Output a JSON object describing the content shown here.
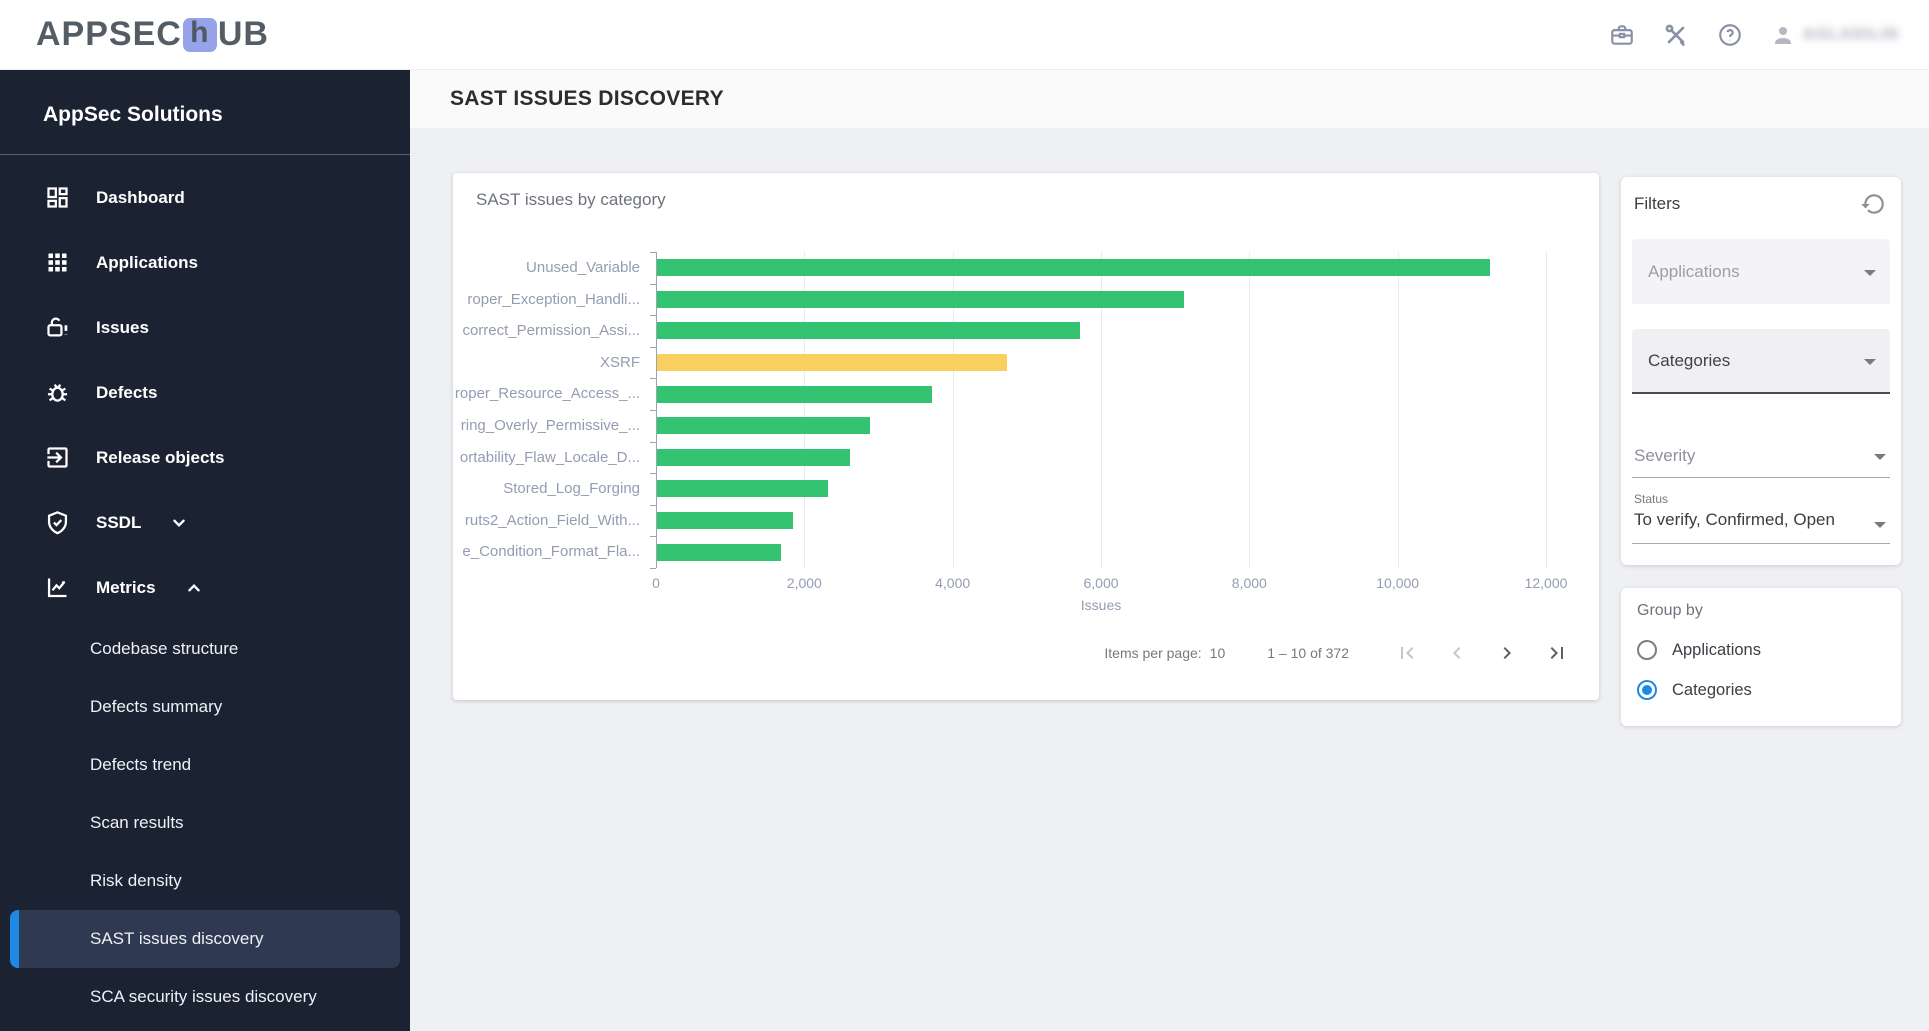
{
  "topbar": {
    "logo_part1": "APPSEC",
    "logo_tile_letter": "h",
    "logo_part2": "UB",
    "action_icons": [
      "briefcase-icon",
      "tools-icon",
      "help-icon"
    ],
    "user_name": "AGLADILIN"
  },
  "sidebar": {
    "title": "AppSec Solutions",
    "items": [
      {
        "label": "Dashboard",
        "icon": "dashboard-icon"
      },
      {
        "label": "Applications",
        "icon": "applications-icon"
      },
      {
        "label": "Issues",
        "icon": "issues-icon"
      },
      {
        "label": "Defects",
        "icon": "defects-icon"
      },
      {
        "label": "Release objects",
        "icon": "release-objects-icon"
      },
      {
        "label": "SSDL",
        "icon": "ssdl-icon",
        "chevron": "down"
      },
      {
        "label": "Metrics",
        "icon": "metrics-icon",
        "chevron": "up"
      }
    ],
    "metrics_subitems": [
      {
        "label": "Codebase structure",
        "active": false
      },
      {
        "label": "Defects summary",
        "active": false
      },
      {
        "label": "Defects trend",
        "active": false
      },
      {
        "label": "Scan results",
        "active": false
      },
      {
        "label": "Risk density",
        "active": false
      },
      {
        "label": "SAST issues discovery",
        "active": true
      },
      {
        "label": "SCA security issues discovery",
        "active": false
      }
    ]
  },
  "page": {
    "title": "SAST ISSUES DISCOVERY"
  },
  "chart_card": {
    "title": "SAST issues by category",
    "pagination": {
      "items_per_page_label": "Items per page:",
      "items_per_page_value": "10",
      "range_label": "1 – 10 of 372"
    }
  },
  "chart_data": {
    "type": "bar",
    "orientation": "horizontal",
    "title": "SAST issues by category",
    "categories": [
      "Unused_Variable",
      "roper_Exception_Handli...",
      "correct_Permission_Assi...",
      "XSRF",
      "roper_Resource_Access_...",
      "ring_Overly_Permissive_...",
      "ortability_Flaw_Locale_D...",
      "Stored_Log_Forging",
      "ruts2_Action_Field_With...",
      "e_Condition_Format_Fla..."
    ],
    "values": [
      11240,
      7120,
      5710,
      4730,
      3710,
      2870,
      2600,
      2310,
      1830,
      1670
    ],
    "highlighted_category": "XSRF",
    "bar_color_default": "#34c471",
    "bar_color_highlight": "#f9cf60",
    "xlabel": "Issues",
    "xlim": [
      0,
      12000
    ],
    "xticks": [
      0,
      2000,
      4000,
      6000,
      8000,
      10000,
      12000
    ],
    "xtick_labels": [
      "0",
      "2,000",
      "4,000",
      "6,000",
      "8,000",
      "10,000",
      "12,000"
    ],
    "grid": "vertical-gridlines",
    "legend": "none"
  },
  "filters_panel": {
    "title": "Filters",
    "fields": [
      {
        "id": "applications",
        "text": "Applications",
        "style": "filled"
      },
      {
        "id": "categories",
        "text": "Categories",
        "style": "filled-active"
      },
      {
        "id": "severity",
        "text": "Severity",
        "style": "standard"
      },
      {
        "id": "status",
        "label": "Status",
        "value": "To verify, Confirmed, Open",
        "style": "standard-labeled"
      }
    ]
  },
  "groupby_panel": {
    "title": "Group by",
    "options": [
      {
        "label": "Applications",
        "selected": false
      },
      {
        "label": "Categories",
        "selected": true
      }
    ]
  },
  "colors": {
    "accent_blue": "#1e88e5",
    "bar_green": "#34c471",
    "bar_yellow": "#f9cf60",
    "sidebar_bg": "#1b2333",
    "active_item_bg": "#2f3a52"
  }
}
